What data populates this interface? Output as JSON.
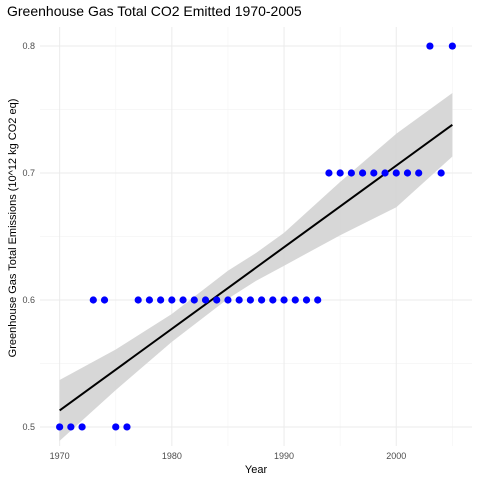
{
  "chart_data": {
    "type": "scatter",
    "title": "Greenhouse Gas Total CO2 Emitted 1970-2005",
    "xlabel": "Year",
    "ylabel": "Greenhouse Gas Total Emissions (10^12 kg CO2 eq)",
    "xlim": [
      1968.25,
      2006.75
    ],
    "ylim": [
      0.485,
      0.815
    ],
    "x_ticks": [
      1970,
      1980,
      1990,
      2000
    ],
    "y_ticks": [
      0.5,
      0.6,
      0.7,
      0.8
    ],
    "x_tick_labels": [
      "1970",
      "1980",
      "1990",
      "2000"
    ],
    "y_tick_labels": [
      "0.5",
      "0.6",
      "0.7",
      "0.8"
    ],
    "grid": true,
    "series": [
      {
        "x": [
          1970,
          1971,
          1972,
          1973,
          1974,
          1975,
          1976,
          1977,
          1978,
          1979,
          1980,
          1981,
          1982,
          1983,
          1984,
          1985,
          1986,
          1987,
          1988,
          1989,
          1990,
          1991,
          1992,
          1993,
          1994,
          1995,
          1996,
          1997,
          1998,
          1999,
          2000,
          2001,
          2002,
          2003,
          2004,
          2005
        ],
        "y": [
          0.5,
          0.5,
          0.5,
          0.6,
          0.6,
          0.5,
          0.5,
          0.6,
          0.6,
          0.6,
          0.6,
          0.6,
          0.6,
          0.6,
          0.6,
          0.6,
          0.6,
          0.6,
          0.6,
          0.6,
          0.6,
          0.6,
          0.6,
          0.6,
          0.7,
          0.7,
          0.7,
          0.7,
          0.7,
          0.7,
          0.7,
          0.7,
          0.7,
          0.8,
          0.7,
          0.8
        ],
        "color": "#0000ff"
      }
    ],
    "trend_line": {
      "type": "linear",
      "x": [
        1970,
        2005
      ],
      "y": [
        0.513,
        0.738
      ],
      "color": "#000000"
    },
    "confidence_band": {
      "x": [
        1970,
        1975,
        1980,
        1985,
        1987.5,
        1990,
        1995,
        2000,
        2005
      ],
      "lower": [
        0.489,
        0.529,
        0.567,
        0.601,
        0.615,
        0.627,
        0.651,
        0.673,
        0.713
      ],
      "upper": [
        0.537,
        0.561,
        0.589,
        0.623,
        0.637,
        0.653,
        0.693,
        0.731,
        0.763
      ],
      "color": "#d3d3d3"
    }
  }
}
